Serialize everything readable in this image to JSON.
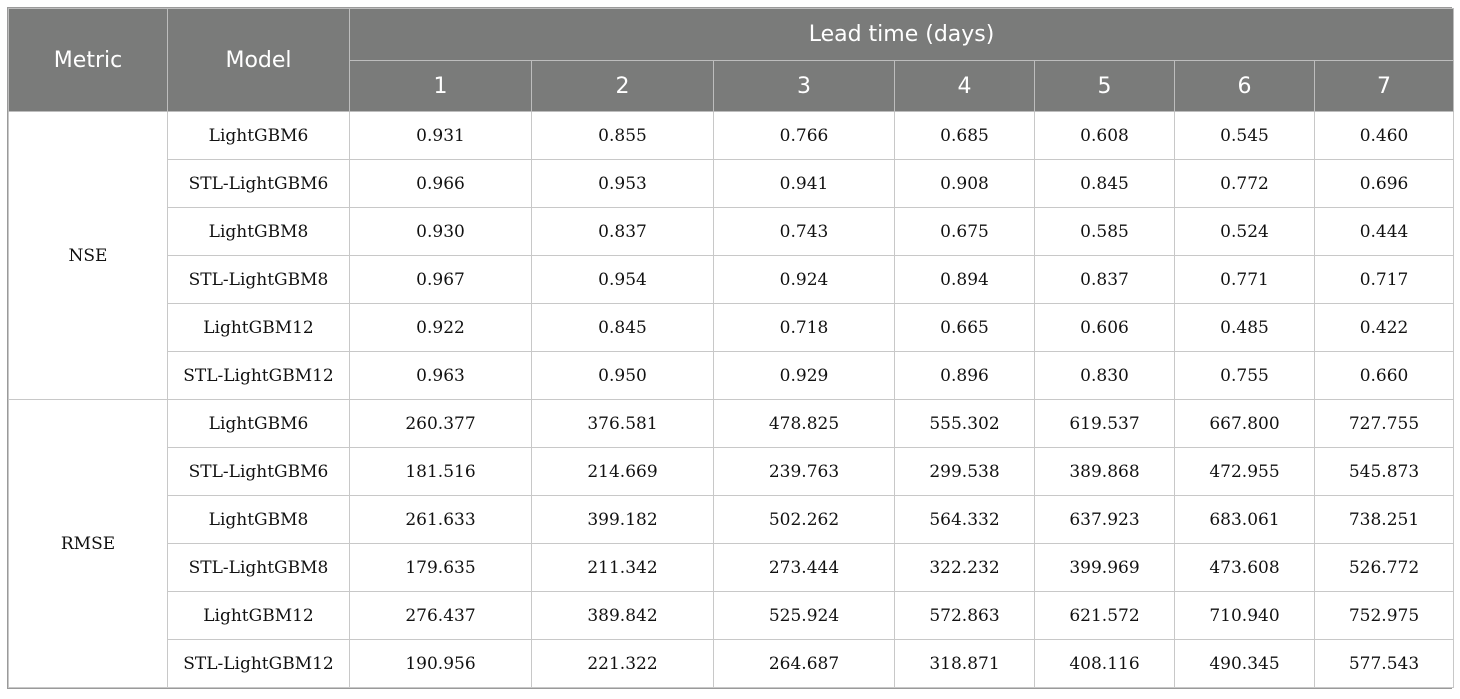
{
  "header": {
    "metric_label": "Metric",
    "model_label": "Model",
    "lead_time_label": "Lead time (days)",
    "lead_days": [
      "1",
      "2",
      "3",
      "4",
      "5",
      "6",
      "7"
    ]
  },
  "groups": [
    {
      "metric": "NSE",
      "rows": [
        {
          "model": "LightGBM6",
          "values": [
            "0.931",
            "0.855",
            "0.766",
            "0.685",
            "0.608",
            "0.545",
            "0.460"
          ]
        },
        {
          "model": "STL-LightGBM6",
          "values": [
            "0.966",
            "0.953",
            "0.941",
            "0.908",
            "0.845",
            "0.772",
            "0.696"
          ]
        },
        {
          "model": "LightGBM8",
          "values": [
            "0.930",
            "0.837",
            "0.743",
            "0.675",
            "0.585",
            "0.524",
            "0.444"
          ]
        },
        {
          "model": "STL-LightGBM8",
          "values": [
            "0.967",
            "0.954",
            "0.924",
            "0.894",
            "0.837",
            "0.771",
            "0.717"
          ]
        },
        {
          "model": "LightGBM12",
          "values": [
            "0.922",
            "0.845",
            "0.718",
            "0.665",
            "0.606",
            "0.485",
            "0.422"
          ]
        },
        {
          "model": "STL-LightGBM12",
          "values": [
            "0.963",
            "0.950",
            "0.929",
            "0.896",
            "0.830",
            "0.755",
            "0.660"
          ]
        }
      ]
    },
    {
      "metric": "RMSE",
      "rows": [
        {
          "model": "LightGBM6",
          "values": [
            "260.377",
            "376.581",
            "478.825",
            "555.302",
            "619.537",
            "667.800",
            "727.755"
          ]
        },
        {
          "model": "STL-LightGBM6",
          "values": [
            "181.516",
            "214.669",
            "239.763",
            "299.538",
            "389.868",
            "472.955",
            "545.873"
          ]
        },
        {
          "model": "LightGBM8",
          "values": [
            "261.633",
            "399.182",
            "502.262",
            "564.332",
            "637.923",
            "683.061",
            "738.251"
          ]
        },
        {
          "model": "STL-LightGBM8",
          "values": [
            "179.635",
            "211.342",
            "273.444",
            "322.232",
            "399.969",
            "473.608",
            "526.772"
          ]
        },
        {
          "model": "LightGBM12",
          "values": [
            "276.437",
            "389.842",
            "525.924",
            "572.863",
            "621.572",
            "710.940",
            "752.975"
          ]
        },
        {
          "model": "STL-LightGBM12",
          "values": [
            "190.956",
            "221.322",
            "264.687",
            "318.871",
            "408.116",
            "490.345",
            "577.543"
          ]
        }
      ]
    }
  ]
}
